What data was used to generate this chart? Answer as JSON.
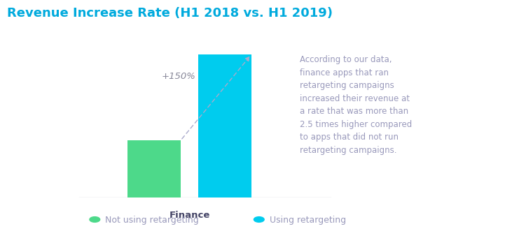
{
  "title": "Revenue Increase Rate (H1 2018 vs. H1 2019)",
  "title_color": "#00AADD",
  "title_fontsize": 13,
  "bars": [
    {
      "label": "Not using retargeting",
      "value": 40,
      "color": "#4DD98A"
    },
    {
      "label": "Using retargeting",
      "value": 100,
      "color": "#00CCEE"
    }
  ],
  "x_label": "Finance",
  "x_label_color": "#444466",
  "annotation_text": "+150%",
  "annotation_color": "#888899",
  "annotation_fontsize": 9.5,
  "side_text": "According to our data,\nfinance apps that ran\nretargeting campaigns\nincreased their revenue at\na rate that was more than\n2.5 times higher compared\nto apps that did not run\nretargeting campaigns.",
  "side_text_color": "#9999BB",
  "side_text_fontsize": 8.5,
  "legend_fontsize": 9,
  "legend_text_color": "#9999BB",
  "background_color": "#FFFFFF",
  "ylim": [
    0,
    120
  ],
  "bar_width": 0.12,
  "bar_positions": [
    0.22,
    0.38
  ],
  "xlim": [
    0.0,
    1.0
  ],
  "axhline_xmin": 0.05,
  "axhline_xmax": 0.62
}
